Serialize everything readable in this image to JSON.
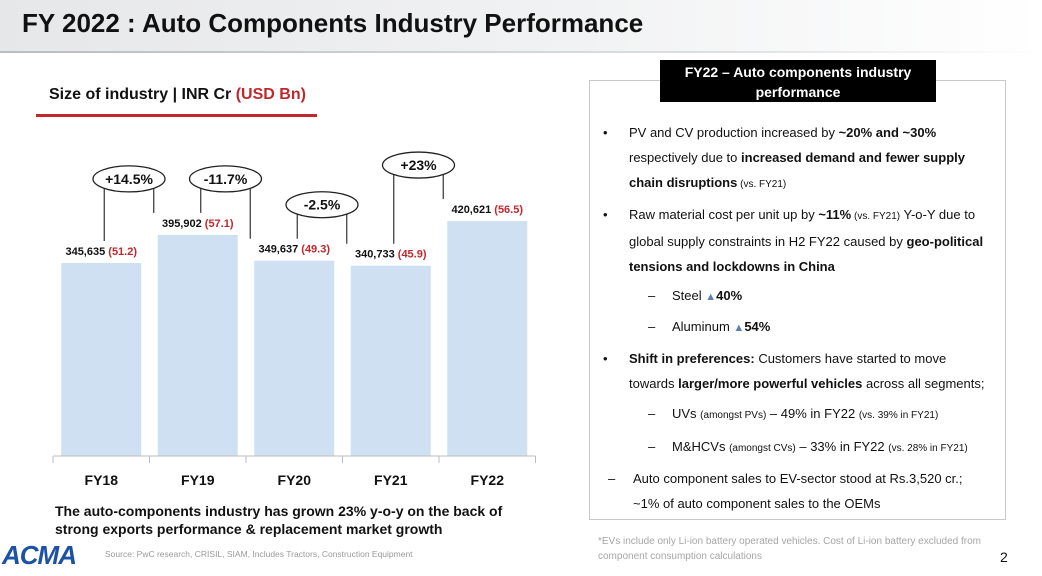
{
  "header": {
    "title": "FY 2022 : Auto Components Industry Performance"
  },
  "chart_section": {
    "subtitle_main": "Size of industry | INR Cr ",
    "subtitle_usd": "(USD Bn)"
  },
  "chart_data": {
    "type": "bar",
    "title": "Size of industry | INR Cr (USD Bn)",
    "categories": [
      "FY18",
      "FY19",
      "FY20",
      "FY21",
      "FY22"
    ],
    "values": [
      345635,
      395902,
      349637,
      340733,
      420621
    ],
    "value_labels": [
      "345,635",
      "395,902",
      "349,637",
      "340,733",
      "420,621"
    ],
    "usd_labels": [
      "(51.2)",
      "(57.1)",
      "(49.3)",
      "(45.9)",
      "(56.5)"
    ],
    "growth_labels": [
      "+14.5%",
      "-11.7%",
      "-2.5%",
      "+23%"
    ],
    "ylim": [
      0,
      530000
    ],
    "bar_color": "#cfe0f3",
    "accent_color": "#c0282d"
  },
  "chart_note": "The auto-components industry has grown 23% y-o-y on the back of strong exports performance & replacement market growth",
  "logo": "ACMA",
  "source": "Source: PwC research, CRISIL, SIAM, Includes Tractors, Construction Equipment",
  "panel": {
    "title": "FY22 – Auto components industry performance",
    "p1": {
      "bullet": "•",
      "a": "PV and CV production increased by ",
      "b": "~20% and ~30%",
      "c": "respectively due to ",
      "d": "increased demand and fewer supply",
      "e": "chain disruptions",
      "f": " (vs. FY21)"
    },
    "p2": {
      "bullet": "•",
      "a": "Raw material cost per unit up by ",
      "b": "~11%",
      "c": " (vs. FY21)",
      "d": " Y-o-Y due to",
      "e": "global supply constraints in H2 FY22 caused by ",
      "f": "geo-political",
      "g": "tensions and lockdowns in China"
    },
    "steel": {
      "dash": "–",
      "label": "Steel ",
      "value": "40%"
    },
    "aluminum": {
      "dash": "–",
      "label": "Aluminum ",
      "value": "54%"
    },
    "p3": {
      "bullet": "•",
      "a": "Shift in preferences:",
      "b": " Customers have started to move",
      "c": "towards ",
      "d": "larger/more powerful vehicles",
      "e": " across all segments;"
    },
    "uvs": {
      "dash": "–",
      "a": "UVs ",
      "b": "(amongst PVs)",
      "c": " – 49% in FY22 ",
      "d": "(vs. 39% in FY21)"
    },
    "mhcvs": {
      "dash": "–",
      "a": "M&HCVs ",
      "b": "(amongst CVs)",
      "c": " – 33% in FY22 ",
      "d": "(vs. 28% in FY21)"
    },
    "p4": {
      "dash": "–",
      "a": "Auto component sales to EV-sector stood at Rs.3,520 cr.;",
      "b": "~1% of auto component sales to the OEMs"
    }
  },
  "footnote": "*EVs include only Li-ion battery operated vehicles. Cost of Li-ion battery excluded from component consumption calculations",
  "page_number": "2"
}
